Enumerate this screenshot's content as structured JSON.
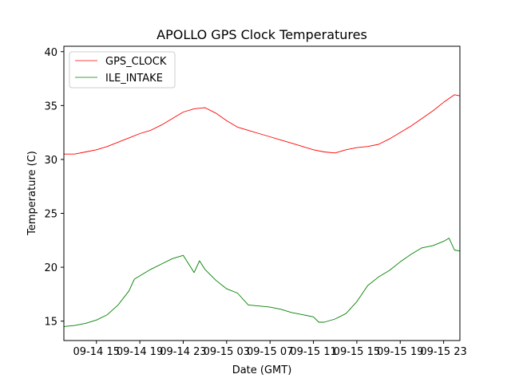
{
  "chart_data": {
    "type": "line",
    "title": "APOLLO GPS Clock Temperatures",
    "xlabel": "Date (GMT)",
    "ylabel": "Temperature (C)",
    "xlim": [
      12.0,
      48.5
    ],
    "ylim": [
      13.2,
      40.5
    ],
    "grid": false,
    "legend_position": "top-left",
    "x_units": "hours since 2014-09-14 00:00 GMT",
    "x_ticks": [
      15,
      19,
      23,
      27,
      31,
      35,
      39,
      43,
      47
    ],
    "x_tick_labels": [
      "09-14 15",
      "09-14 19",
      "09-14 23",
      "09-15 03",
      "09-15 07",
      "09-15 11",
      "09-15 15",
      "09-15 19",
      "09-15 23"
    ],
    "y_ticks": [
      15,
      20,
      25,
      30,
      35,
      40
    ],
    "y_tick_labels": [
      "15",
      "20",
      "25",
      "30",
      "35",
      "40"
    ],
    "series": [
      {
        "name": "GPS_CLOCK",
        "color": "#ff0000",
        "x": [
          12.0,
          13.0,
          14.0,
          15.0,
          16.0,
          17.0,
          18.0,
          19.0,
          20.0,
          21.0,
          22.0,
          23.0,
          24.0,
          25.0,
          26.0,
          27.0,
          28.0,
          29.0,
          30.0,
          31.0,
          32.0,
          33.0,
          34.0,
          35.0,
          36.0,
          37.0,
          38.0,
          39.0,
          40.0,
          41.0,
          42.0,
          43.0,
          44.0,
          45.0,
          46.0,
          47.0,
          48.0,
          48.5
        ],
        "y": [
          30.5,
          30.5,
          30.7,
          30.9,
          31.2,
          31.6,
          32.0,
          32.4,
          32.7,
          33.2,
          33.8,
          34.4,
          34.7,
          34.8,
          34.3,
          33.6,
          33.0,
          32.7,
          32.4,
          32.1,
          31.8,
          31.5,
          31.2,
          30.9,
          30.7,
          30.6,
          30.9,
          31.1,
          31.2,
          31.4,
          31.9,
          32.5,
          33.1,
          33.8,
          34.5,
          35.3,
          36.0,
          35.9
        ]
      },
      {
        "name": "ILE_INTAKE",
        "color": "#008000",
        "x": [
          12.0,
          13.0,
          14.0,
          15.0,
          16.0,
          17.0,
          18.0,
          18.5,
          19.0,
          20.0,
          21.0,
          22.0,
          23.0,
          24.0,
          24.5,
          25.0,
          26.0,
          27.0,
          28.0,
          29.0,
          30.0,
          31.0,
          32.0,
          33.0,
          34.0,
          35.0,
          35.5,
          36.0,
          37.0,
          38.0,
          39.0,
          40.0,
          41.0,
          42.0,
          43.0,
          44.0,
          45.0,
          46.0,
          47.0,
          47.5,
          48.0,
          48.5
        ],
        "y": [
          14.5,
          14.6,
          14.8,
          15.1,
          15.6,
          16.5,
          17.8,
          18.9,
          19.2,
          19.8,
          20.3,
          20.8,
          21.1,
          19.5,
          20.6,
          19.8,
          18.8,
          18.0,
          17.6,
          16.5,
          16.4,
          16.3,
          16.1,
          15.8,
          15.6,
          15.4,
          14.9,
          14.9,
          15.2,
          15.7,
          16.8,
          18.3,
          19.1,
          19.7,
          20.5,
          21.2,
          21.8,
          22.0,
          22.4,
          22.7,
          21.6,
          21.5
        ]
      }
    ]
  }
}
